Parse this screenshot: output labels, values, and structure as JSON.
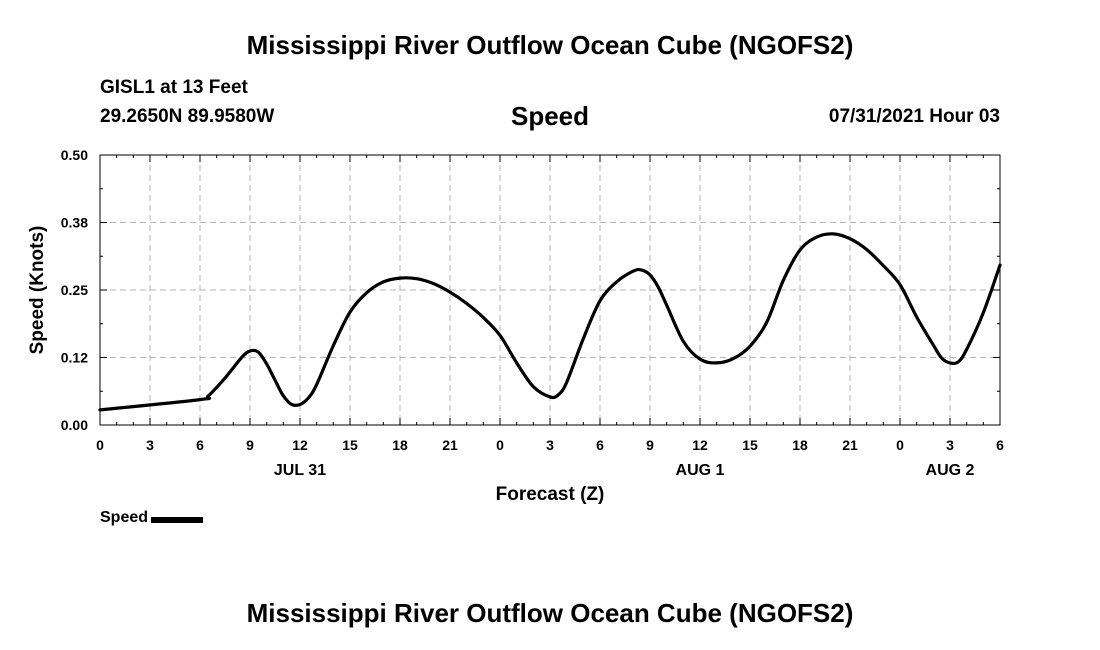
{
  "chart_data": {
    "type": "line",
    "title": "Mississippi River Outflow Ocean Cube (NGOFS2)",
    "footer_title": "Mississippi River Outflow Ocean Cube (NGOFS2)",
    "subtitle": "Speed",
    "station": "GISL1 at 13 Feet",
    "coordinates": "29.2650N  89.9580W",
    "datetime": "07/31/2021 Hour 03",
    "xlabel": "Forecast (Z)",
    "ylabel": "Speed (Knots)",
    "xlim": [
      0,
      54
    ],
    "ylim": [
      0,
      0.5
    ],
    "x_tick_values": [
      0,
      3,
      6,
      9,
      12,
      15,
      18,
      21,
      24,
      27,
      30,
      33,
      36,
      39,
      42,
      45,
      48,
      51,
      54
    ],
    "x_tick_labels": [
      "0",
      "3",
      "6",
      "9",
      "12",
      "15",
      "18",
      "21",
      "0",
      "3",
      "6",
      "9",
      "12",
      "15",
      "18",
      "21",
      "0",
      "3",
      "6"
    ],
    "y_tick_values": [
      0,
      0.125,
      0.25,
      0.375,
      0.5
    ],
    "y_tick_labels": [
      "0.00",
      "0.12",
      "0.25",
      "0.38",
      "0.50"
    ],
    "date_labels": [
      {
        "text": "JUL 31",
        "x": 12
      },
      {
        "text": "AUG 1",
        "x": 36
      },
      {
        "text": "AUG 2",
        "x": 51
      }
    ],
    "grid": true,
    "legend": "bottom-left",
    "series": [
      {
        "name": "Speed",
        "color": "#000000",
        "x": [
          0,
          6,
          6.5,
          7.5,
          8.5,
          9,
          9.5,
          10,
          10.5,
          11,
          11.5,
          12,
          12.5,
          13,
          14,
          15,
          16,
          17,
          18,
          19,
          20,
          21,
          22,
          23,
          24,
          25,
          26,
          27,
          27.5,
          28,
          29,
          30,
          31,
          32,
          32.5,
          33,
          33.5,
          34,
          35,
          36,
          37,
          38,
          39,
          40,
          41,
          42,
          43,
          44,
          45,
          46,
          47,
          48,
          49,
          50,
          50.5,
          51,
          51.5,
          52,
          53,
          54
        ],
        "values": [
          0.028,
          0.047,
          0.054,
          0.087,
          0.125,
          0.137,
          0.135,
          0.113,
          0.083,
          0.054,
          0.038,
          0.038,
          0.05,
          0.075,
          0.147,
          0.209,
          0.245,
          0.265,
          0.272,
          0.271,
          0.262,
          0.246,
          0.225,
          0.199,
          0.166,
          0.115,
          0.071,
          0.052,
          0.056,
          0.079,
          0.16,
          0.23,
          0.265,
          0.285,
          0.287,
          0.278,
          0.255,
          0.222,
          0.155,
          0.122,
          0.115,
          0.123,
          0.146,
          0.19,
          0.268,
          0.324,
          0.348,
          0.354,
          0.345,
          0.325,
          0.295,
          0.26,
          0.2,
          0.148,
          0.124,
          0.115,
          0.117,
          0.14,
          0.208,
          0.296
        ]
      }
    ]
  }
}
